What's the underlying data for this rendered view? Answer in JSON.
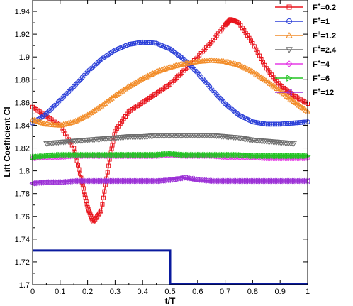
{
  "chart_data": {
    "type": "line",
    "xlabel": "t/T",
    "ylabel": "Lift Coefficient Cl",
    "xlim": [
      0,
      1
    ],
    "ylim": [
      1.7,
      1.95
    ],
    "xticks": [
      "0",
      "0.1",
      "0.2",
      "0.3",
      "0.4",
      "0.5",
      "0.6",
      "0.7",
      "0.8",
      "0.9",
      "1"
    ],
    "yticks": [
      "1.7",
      "1.72",
      "1.74",
      "1.76",
      "1.78",
      "1.8",
      "1.82",
      "1.84",
      "1.86",
      "1.88",
      "1.9",
      "1.92",
      "1.94"
    ],
    "legend_position": "outside-top-right",
    "series": [
      {
        "name": "F+=0.2",
        "color": "#e8141c",
        "marker": "square",
        "x": [
          0,
          0.05,
          0.1,
          0.15,
          0.18,
          0.2,
          0.22,
          0.25,
          0.28,
          0.3,
          0.35,
          0.4,
          0.45,
          0.5,
          0.55,
          0.6,
          0.65,
          0.7,
          0.72,
          0.75,
          0.8,
          0.85,
          0.9,
          0.95,
          1
        ],
        "y": [
          1.856,
          1.848,
          1.84,
          1.82,
          1.79,
          1.768,
          1.755,
          1.765,
          1.81,
          1.835,
          1.852,
          1.86,
          1.868,
          1.876,
          1.888,
          1.9,
          1.913,
          1.928,
          1.933,
          1.93,
          1.912,
          1.89,
          1.875,
          1.866,
          1.859
        ]
      },
      {
        "name": "F+=1",
        "color": "#2b3fd8",
        "marker": "circle",
        "x": [
          0,
          0.05,
          0.1,
          0.15,
          0.2,
          0.25,
          0.3,
          0.35,
          0.4,
          0.45,
          0.5,
          0.55,
          0.6,
          0.65,
          0.7,
          0.75,
          0.8,
          0.85,
          0.9,
          0.95,
          1
        ],
        "y": [
          1.842,
          1.85,
          1.862,
          1.874,
          1.887,
          1.898,
          1.906,
          1.911,
          1.913,
          1.912,
          1.907,
          1.898,
          1.886,
          1.872,
          1.859,
          1.849,
          1.843,
          1.841,
          1.841,
          1.842,
          1.843
        ]
      },
      {
        "name": "F+=1.2",
        "color": "#f28c28",
        "marker": "triangle-up",
        "x": [
          0,
          0.05,
          0.1,
          0.15,
          0.2,
          0.25,
          0.3,
          0.35,
          0.4,
          0.45,
          0.5,
          0.55,
          0.6,
          0.65,
          0.7,
          0.75,
          0.8,
          0.85,
          0.9,
          0.95,
          1
        ],
        "y": [
          1.845,
          1.841,
          1.84,
          1.843,
          1.849,
          1.857,
          1.866,
          1.874,
          1.881,
          1.887,
          1.891,
          1.894,
          1.896,
          1.897,
          1.896,
          1.893,
          1.887,
          1.879,
          1.87,
          1.861,
          1.852
        ]
      },
      {
        "name": "F+=2.4",
        "color": "#6e6e6e",
        "marker": "triangle-down",
        "x": [
          0.05,
          0.1,
          0.15,
          0.2,
          0.25,
          0.3,
          0.35,
          0.4,
          0.45,
          0.5,
          0.55,
          0.6,
          0.65,
          0.7,
          0.75,
          0.8,
          0.85,
          0.9,
          0.95
        ],
        "y": [
          1.824,
          1.825,
          1.826,
          1.827,
          1.828,
          1.829,
          1.83,
          1.83,
          1.831,
          1.831,
          1.831,
          1.831,
          1.831,
          1.83,
          1.829,
          1.827,
          1.826,
          1.825,
          1.824
        ]
      },
      {
        "name": "F+=4",
        "color": "#e63ce6",
        "marker": "diamond",
        "x": [
          0,
          0.05,
          0.1,
          0.15,
          0.2,
          0.25,
          0.3,
          0.35,
          0.4,
          0.45,
          0.5,
          0.55,
          0.6,
          0.65,
          0.7,
          0.75,
          0.8,
          0.85,
          0.9,
          0.95,
          1
        ],
        "y": [
          1.811,
          1.812,
          1.812,
          1.813,
          1.813,
          1.813,
          1.813,
          1.813,
          1.813,
          1.813,
          1.814,
          1.813,
          1.813,
          1.813,
          1.812,
          1.812,
          1.812,
          1.811,
          1.811,
          1.811,
          1.811
        ]
      },
      {
        "name": "F+=6",
        "color": "#22c322",
        "marker": "triangle-right",
        "x": [
          0,
          0.05,
          0.1,
          0.15,
          0.2,
          0.25,
          0.3,
          0.35,
          0.4,
          0.45,
          0.5,
          0.55,
          0.6,
          0.65,
          0.7,
          0.75,
          0.8,
          0.85,
          0.9,
          0.95,
          1
        ],
        "y": [
          1.812,
          1.813,
          1.814,
          1.814,
          1.814,
          1.814,
          1.814,
          1.814,
          1.814,
          1.814,
          1.815,
          1.814,
          1.814,
          1.814,
          1.814,
          1.814,
          1.813,
          1.813,
          1.813,
          1.813,
          1.813
        ]
      },
      {
        "name": "F+=12",
        "color": "#9b2fd6",
        "marker": "triangle-left",
        "x": [
          0,
          0.05,
          0.1,
          0.15,
          0.2,
          0.25,
          0.3,
          0.35,
          0.4,
          0.45,
          0.5,
          0.55,
          0.6,
          0.65,
          0.7,
          0.75,
          0.8,
          0.85,
          0.9,
          0.95,
          1
        ],
        "y": [
          1.789,
          1.79,
          1.79,
          1.791,
          1.791,
          1.791,
          1.791,
          1.791,
          1.791,
          1.791,
          1.792,
          1.794,
          1.792,
          1.791,
          1.791,
          1.791,
          1.791,
          1.791,
          1.791,
          1.791,
          1.791
        ]
      },
      {
        "name": "",
        "color": "#0a1a9e",
        "marker": "none",
        "step": true,
        "x": [
          0,
          0.5,
          0.5,
          1
        ],
        "y": [
          1.73,
          1.73,
          1.7,
          1.7
        ]
      }
    ]
  }
}
